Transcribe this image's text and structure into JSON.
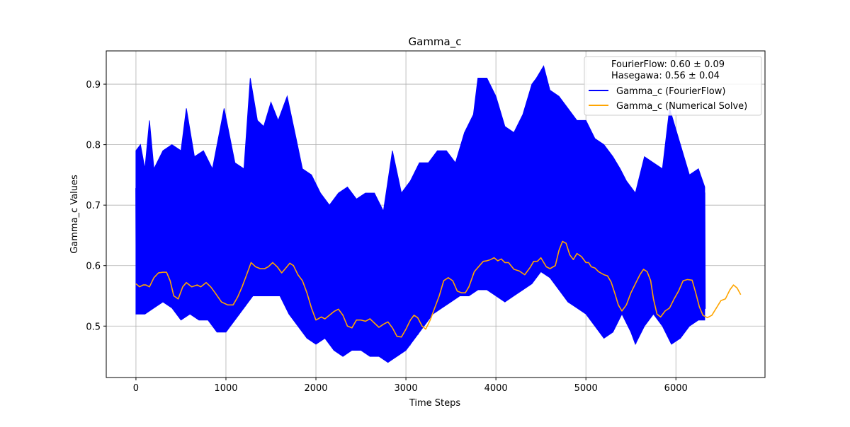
{
  "chart_data": {
    "type": "line",
    "title": "Gamma_c",
    "xlabel": "Time Steps",
    "ylabel": "Gamma_c Values",
    "xlim": [
      -330,
      6990
    ],
    "ylim": [
      0.415,
      0.955
    ],
    "x_ticks": [
      0,
      1000,
      2000,
      3000,
      4000,
      5000,
      6000
    ],
    "x_tick_labels": [
      "0",
      "1000",
      "2000",
      "3000",
      "4000",
      "5000",
      "6000"
    ],
    "y_ticks": [
      0.5,
      0.6,
      0.7,
      0.8,
      0.9
    ],
    "y_tick_labels": [
      "0.5",
      "0.6",
      "0.7",
      "0.8",
      "0.9"
    ],
    "grid": true,
    "legend_position": "top-right",
    "legend_stats": [
      "FourierFlow: 0.60 ± 0.09",
      "Hasegawa: 0.56 ± 0.04"
    ],
    "series": [
      {
        "name": "Gamma_c (FourierFlow)",
        "color": "#0000ff",
        "x_range": [
          0,
          6320
        ],
        "note_style": "oscillating band",
        "upper_envelope": [
          [
            0,
            0.79
          ],
          [
            50,
            0.8
          ],
          [
            100,
            0.76
          ],
          [
            150,
            0.84
          ],
          [
            200,
            0.76
          ],
          [
            300,
            0.79
          ],
          [
            400,
            0.8
          ],
          [
            500,
            0.79
          ],
          [
            560,
            0.86
          ],
          [
            650,
            0.78
          ],
          [
            750,
            0.79
          ],
          [
            850,
            0.76
          ],
          [
            980,
            0.86
          ],
          [
            1100,
            0.77
          ],
          [
            1200,
            0.76
          ],
          [
            1270,
            0.91
          ],
          [
            1350,
            0.84
          ],
          [
            1420,
            0.83
          ],
          [
            1500,
            0.87
          ],
          [
            1580,
            0.84
          ],
          [
            1680,
            0.88
          ],
          [
            1780,
            0.81
          ],
          [
            1850,
            0.76
          ],
          [
            1950,
            0.75
          ],
          [
            2050,
            0.72
          ],
          [
            2150,
            0.7
          ],
          [
            2250,
            0.72
          ],
          [
            2350,
            0.73
          ],
          [
            2450,
            0.71
          ],
          [
            2550,
            0.72
          ],
          [
            2650,
            0.72
          ],
          [
            2750,
            0.69
          ],
          [
            2850,
            0.79
          ],
          [
            2950,
            0.72
          ],
          [
            3050,
            0.74
          ],
          [
            3150,
            0.77
          ],
          [
            3250,
            0.77
          ],
          [
            3350,
            0.79
          ],
          [
            3450,
            0.79
          ],
          [
            3550,
            0.77
          ],
          [
            3650,
            0.82
          ],
          [
            3750,
            0.85
          ],
          [
            3800,
            0.91
          ],
          [
            3900,
            0.91
          ],
          [
            4000,
            0.88
          ],
          [
            4100,
            0.83
          ],
          [
            4200,
            0.82
          ],
          [
            4300,
            0.85
          ],
          [
            4400,
            0.9
          ],
          [
            4450,
            0.91
          ],
          [
            4530,
            0.93
          ],
          [
            4600,
            0.89
          ],
          [
            4700,
            0.88
          ],
          [
            4800,
            0.86
          ],
          [
            4900,
            0.84
          ],
          [
            5000,
            0.84
          ],
          [
            5100,
            0.81
          ],
          [
            5200,
            0.8
          ],
          [
            5300,
            0.78
          ],
          [
            5380,
            0.76
          ],
          [
            5450,
            0.74
          ],
          [
            5550,
            0.72
          ],
          [
            5650,
            0.78
          ],
          [
            5750,
            0.77
          ],
          [
            5850,
            0.76
          ],
          [
            5930,
            0.86
          ],
          [
            6050,
            0.8
          ],
          [
            6150,
            0.75
          ],
          [
            6250,
            0.76
          ],
          [
            6320,
            0.73
          ]
        ],
        "lower_envelope": [
          [
            0,
            0.52
          ],
          [
            100,
            0.52
          ],
          [
            200,
            0.53
          ],
          [
            300,
            0.54
          ],
          [
            400,
            0.53
          ],
          [
            500,
            0.51
          ],
          [
            600,
            0.52
          ],
          [
            700,
            0.51
          ],
          [
            800,
            0.51
          ],
          [
            900,
            0.49
          ],
          [
            1000,
            0.49
          ],
          [
            1100,
            0.51
          ],
          [
            1200,
            0.53
          ],
          [
            1300,
            0.55
          ],
          [
            1400,
            0.55
          ],
          [
            1500,
            0.55
          ],
          [
            1600,
            0.55
          ],
          [
            1700,
            0.52
          ],
          [
            1800,
            0.5
          ],
          [
            1900,
            0.48
          ],
          [
            2000,
            0.47
          ],
          [
            2100,
            0.48
          ],
          [
            2200,
            0.46
          ],
          [
            2300,
            0.45
          ],
          [
            2400,
            0.46
          ],
          [
            2500,
            0.46
          ],
          [
            2600,
            0.45
          ],
          [
            2700,
            0.45
          ],
          [
            2800,
            0.44
          ],
          [
            2900,
            0.45
          ],
          [
            3000,
            0.46
          ],
          [
            3100,
            0.48
          ],
          [
            3200,
            0.5
          ],
          [
            3300,
            0.52
          ],
          [
            3400,
            0.53
          ],
          [
            3500,
            0.54
          ],
          [
            3600,
            0.55
          ],
          [
            3700,
            0.55
          ],
          [
            3800,
            0.56
          ],
          [
            3900,
            0.56
          ],
          [
            4000,
            0.55
          ],
          [
            4100,
            0.54
          ],
          [
            4200,
            0.55
          ],
          [
            4300,
            0.56
          ],
          [
            4400,
            0.57
          ],
          [
            4500,
            0.59
          ],
          [
            4600,
            0.58
          ],
          [
            4700,
            0.56
          ],
          [
            4800,
            0.54
          ],
          [
            4900,
            0.53
          ],
          [
            5000,
            0.52
          ],
          [
            5100,
            0.5
          ],
          [
            5200,
            0.48
          ],
          [
            5300,
            0.49
          ],
          [
            5400,
            0.52
          ],
          [
            5500,
            0.49
          ],
          [
            5550,
            0.47
          ],
          [
            5650,
            0.5
          ],
          [
            5750,
            0.52
          ],
          [
            5850,
            0.5
          ],
          [
            5950,
            0.47
          ],
          [
            6050,
            0.48
          ],
          [
            6150,
            0.5
          ],
          [
            6250,
            0.51
          ],
          [
            6320,
            0.51
          ]
        ]
      },
      {
        "name": "Gamma_c (Numerical Solve)",
        "color": "#ffa500",
        "points": [
          [
            0,
            0.57
          ],
          [
            40,
            0.565
          ],
          [
            80,
            0.568
          ],
          [
            110,
            0.568
          ],
          [
            150,
            0.565
          ],
          [
            200,
            0.58
          ],
          [
            250,
            0.588
          ],
          [
            300,
            0.589
          ],
          [
            340,
            0.589
          ],
          [
            380,
            0.575
          ],
          [
            420,
            0.55
          ],
          [
            470,
            0.545
          ],
          [
            520,
            0.565
          ],
          [
            560,
            0.572
          ],
          [
            620,
            0.565
          ],
          [
            680,
            0.568
          ],
          [
            720,
            0.565
          ],
          [
            780,
            0.572
          ],
          [
            830,
            0.565
          ],
          [
            880,
            0.555
          ],
          [
            950,
            0.54
          ],
          [
            1020,
            0.535
          ],
          [
            1080,
            0.535
          ],
          [
            1130,
            0.548
          ],
          [
            1180,
            0.565
          ],
          [
            1230,
            0.585
          ],
          [
            1280,
            0.605
          ],
          [
            1330,
            0.598
          ],
          [
            1380,
            0.595
          ],
          [
            1430,
            0.595
          ],
          [
            1470,
            0.598
          ],
          [
            1520,
            0.605
          ],
          [
            1570,
            0.598
          ],
          [
            1620,
            0.588
          ],
          [
            1660,
            0.595
          ],
          [
            1710,
            0.604
          ],
          [
            1750,
            0.6
          ],
          [
            1800,
            0.585
          ],
          [
            1850,
            0.575
          ],
          [
            1900,
            0.555
          ],
          [
            1950,
            0.53
          ],
          [
            2000,
            0.51
          ],
          [
            2060,
            0.515
          ],
          [
            2100,
            0.512
          ],
          [
            2150,
            0.518
          ],
          [
            2200,
            0.524
          ],
          [
            2250,
            0.528
          ],
          [
            2300,
            0.518
          ],
          [
            2350,
            0.5
          ],
          [
            2400,
            0.497
          ],
          [
            2450,
            0.51
          ],
          [
            2500,
            0.51
          ],
          [
            2550,
            0.508
          ],
          [
            2600,
            0.512
          ],
          [
            2650,
            0.505
          ],
          [
            2700,
            0.498
          ],
          [
            2750,
            0.503
          ],
          [
            2800,
            0.507
          ],
          [
            2850,
            0.497
          ],
          [
            2900,
            0.483
          ],
          [
            2950,
            0.482
          ],
          [
            3000,
            0.495
          ],
          [
            3050,
            0.51
          ],
          [
            3090,
            0.518
          ],
          [
            3130,
            0.514
          ],
          [
            3180,
            0.5
          ],
          [
            3220,
            0.495
          ],
          [
            3270,
            0.51
          ],
          [
            3320,
            0.53
          ],
          [
            3370,
            0.55
          ],
          [
            3420,
            0.575
          ],
          [
            3470,
            0.58
          ],
          [
            3520,
            0.575
          ],
          [
            3570,
            0.558
          ],
          [
            3620,
            0.555
          ],
          [
            3660,
            0.555
          ],
          [
            3700,
            0.565
          ],
          [
            3760,
            0.59
          ],
          [
            3800,
            0.597
          ],
          [
            3860,
            0.607
          ],
          [
            3900,
            0.608
          ],
          [
            3940,
            0.61
          ],
          [
            3980,
            0.613
          ],
          [
            4020,
            0.608
          ],
          [
            4060,
            0.611
          ],
          [
            4100,
            0.605
          ],
          [
            4140,
            0.605
          ],
          [
            4200,
            0.594
          ],
          [
            4260,
            0.591
          ],
          [
            4320,
            0.585
          ],
          [
            4380,
            0.597
          ],
          [
            4420,
            0.607
          ],
          [
            4460,
            0.607
          ],
          [
            4500,
            0.613
          ],
          [
            4560,
            0.598
          ],
          [
            4600,
            0.595
          ],
          [
            4660,
            0.6
          ],
          [
            4700,
            0.625
          ],
          [
            4740,
            0.64
          ],
          [
            4780,
            0.637
          ],
          [
            4820,
            0.618
          ],
          [
            4860,
            0.61
          ],
          [
            4900,
            0.62
          ],
          [
            4950,
            0.615
          ],
          [
            5000,
            0.605
          ],
          [
            5030,
            0.605
          ],
          [
            5060,
            0.598
          ],
          [
            5100,
            0.596
          ],
          [
            5140,
            0.59
          ],
          [
            5200,
            0.585
          ],
          [
            5240,
            0.583
          ],
          [
            5280,
            0.573
          ],
          [
            5320,
            0.555
          ],
          [
            5360,
            0.535
          ],
          [
            5400,
            0.525
          ],
          [
            5450,
            0.535
          ],
          [
            5500,
            0.555
          ],
          [
            5550,
            0.57
          ],
          [
            5600,
            0.585
          ],
          [
            5640,
            0.594
          ],
          [
            5680,
            0.59
          ],
          [
            5720,
            0.575
          ],
          [
            5750,
            0.545
          ],
          [
            5790,
            0.52
          ],
          [
            5830,
            0.515
          ],
          [
            5880,
            0.525
          ],
          [
            5930,
            0.53
          ],
          [
            5980,
            0.545
          ],
          [
            6030,
            0.558
          ],
          [
            6080,
            0.575
          ],
          [
            6130,
            0.577
          ],
          [
            6180,
            0.576
          ],
          [
            6220,
            0.555
          ],
          [
            6260,
            0.532
          ],
          [
            6300,
            0.518
          ],
          [
            6350,
            0.514
          ],
          [
            6400,
            0.518
          ],
          [
            6450,
            0.53
          ],
          [
            6500,
            0.542
          ],
          [
            6550,
            0.545
          ],
          [
            6600,
            0.56
          ],
          [
            6640,
            0.568
          ],
          [
            6680,
            0.563
          ],
          [
            6720,
            0.552
          ]
        ]
      }
    ]
  }
}
